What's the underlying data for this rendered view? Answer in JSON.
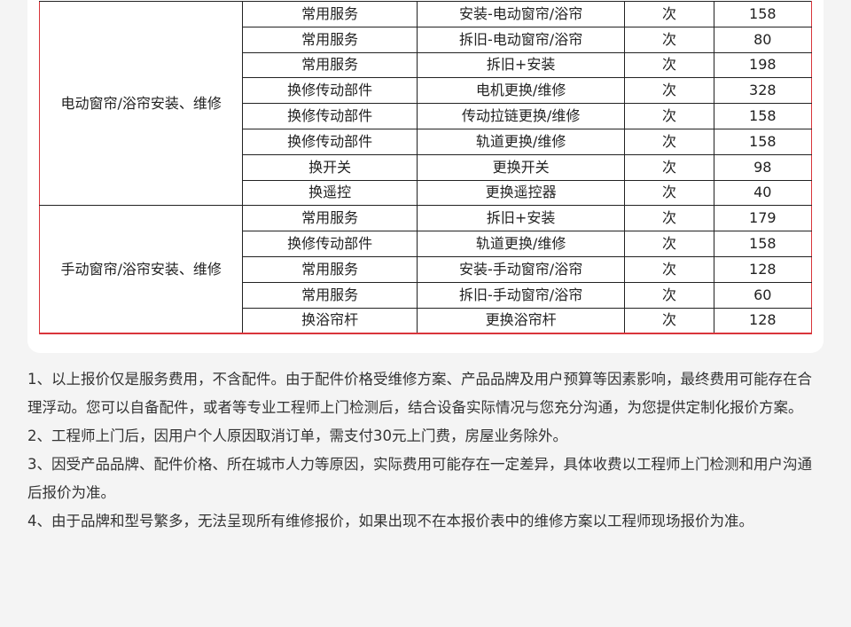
{
  "table": {
    "groups": [
      {
        "category": "电动窗帘/浴帘安装、维修",
        "rows": [
          {
            "type": "常用服务",
            "item": "安装-电动窗帘/浴帘",
            "unit": "次",
            "price": "158"
          },
          {
            "type": "常用服务",
            "item": "拆旧-电动窗帘/浴帘",
            "unit": "次",
            "price": "80"
          },
          {
            "type": "常用服务",
            "item": "拆旧+安装",
            "unit": "次",
            "price": "198"
          },
          {
            "type": "换修传动部件",
            "item": "电机更换/维修",
            "unit": "次",
            "price": "328"
          },
          {
            "type": "换修传动部件",
            "item": "传动拉链更换/维修",
            "unit": "次",
            "price": "158"
          },
          {
            "type": "换修传动部件",
            "item": "轨道更换/维修",
            "unit": "次",
            "price": "158"
          },
          {
            "type": "换开关",
            "item": "更换开关",
            "unit": "次",
            "price": "98"
          },
          {
            "type": "换遥控",
            "item": "更换遥控器",
            "unit": "次",
            "price": "40"
          }
        ]
      },
      {
        "category": "手动窗帘/浴帘安装、维修",
        "rows": [
          {
            "type": "常用服务",
            "item": "拆旧+安装",
            "unit": "次",
            "price": "179"
          },
          {
            "type": "换修传动部件",
            "item": "轨道更换/维修",
            "unit": "次",
            "price": "158"
          },
          {
            "type": "常用服务",
            "item": "安装-手动窗帘/浴帘",
            "unit": "次",
            "price": "128"
          },
          {
            "type": "常用服务",
            "item": "拆旧-手动窗帘/浴帘",
            "unit": "次",
            "price": "60"
          },
          {
            "type": "换浴帘杆",
            "item": "更换浴帘杆",
            "unit": "次",
            "price": "128"
          }
        ]
      }
    ]
  },
  "notes": [
    "1、以上报价仅是服务费用，不含配件。由于配件价格受维修方案、产品品牌及用户预算等因素影响，最终费用可能存在合理浮动。您可以自备配件，或者等专业工程师上门检测后，结合设备实际情况与您充分沟通，为您提供定制化报价方案。",
    "2、工程师上门后，因用户个人原因取消订单，需支付30元上门费，房屋业务除外。",
    "3、因受产品品牌、配件价格、所在城市人力等原因，实际费用可能存在一定差异，具体收费以工程师上门检测和用户沟通后报价为准。",
    "4、由于品牌和型号繁多，无法呈现所有维修报价，如果出现不在本报价表中的维修方案以工程师现场报价为准。"
  ],
  "colors": {
    "accent": "#d9353b",
    "background": "#f4f4f4"
  }
}
